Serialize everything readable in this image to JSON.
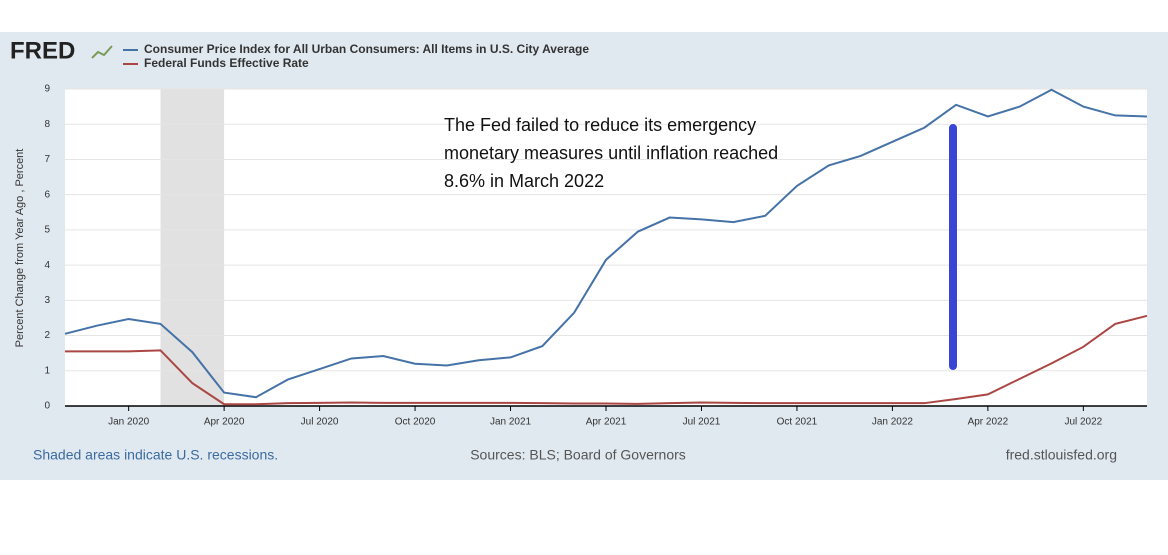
{
  "logo": "FRED",
  "chart_data": {
    "type": "line",
    "ylabel": "Percent Change from Year Ago , Percent",
    "footer_left": "Shaded areas indicate U.S. recessions.",
    "footer_center": "Sources: BLS; Board of Governors",
    "footer_right": "fred.stlouisfed.org",
    "annotation": [
      "The Fed failed to reduce its emergency",
      "monetary measures until inflation reached",
      "8.6% in March 2022"
    ],
    "categories": [
      null,
      null,
      "Jan 2020",
      null,
      null,
      "Apr 2020",
      null,
      null,
      "Jul 2020",
      null,
      null,
      "Oct 2020",
      null,
      null,
      "Jan 2021",
      null,
      null,
      "Apr 2021",
      null,
      null,
      "Jul 2021",
      null,
      null,
      "Oct 2021",
      null,
      null,
      "Jan 2022",
      null,
      null,
      "Apr 2022",
      null,
      null,
      "Jul 2022",
      null,
      null
    ],
    "shaded_range": [
      3,
      5
    ],
    "series": [
      {
        "name": "Consumer Price Index for All Urban Consumers: All Items in U.S. City Average",
        "color": "#4572a7",
        "values": [
          2.05,
          2.28,
          2.47,
          2.33,
          1.53,
          0.38,
          0.25,
          0.75,
          1.05,
          1.35,
          1.42,
          1.2,
          1.15,
          1.3,
          1.38,
          1.7,
          2.65,
          4.15,
          4.95,
          5.35,
          5.3,
          5.22,
          5.4,
          6.25,
          6.83,
          7.1,
          7.5,
          7.9,
          8.55,
          8.22,
          8.5,
          8.98,
          8.5,
          8.25,
          8.22
        ]
      },
      {
        "name": "Federal Funds Effective Rate",
        "color": "#aa4643",
        "values": [
          1.55,
          1.55,
          1.55,
          1.58,
          0.65,
          0.05,
          0.05,
          0.08,
          0.09,
          0.1,
          0.09,
          0.09,
          0.09,
          0.09,
          0.09,
          0.08,
          0.07,
          0.07,
          0.06,
          0.08,
          0.1,
          0.09,
          0.08,
          0.08,
          0.08,
          0.08,
          0.08,
          0.08,
          0.2,
          0.33,
          0.77,
          1.21,
          1.68,
          2.33,
          2.56
        ]
      }
    ],
    "ylim": [
      0,
      9
    ],
    "yticks": [
      0,
      1,
      2,
      3,
      4,
      5,
      6,
      7,
      8,
      9
    ],
    "grid": true
  }
}
